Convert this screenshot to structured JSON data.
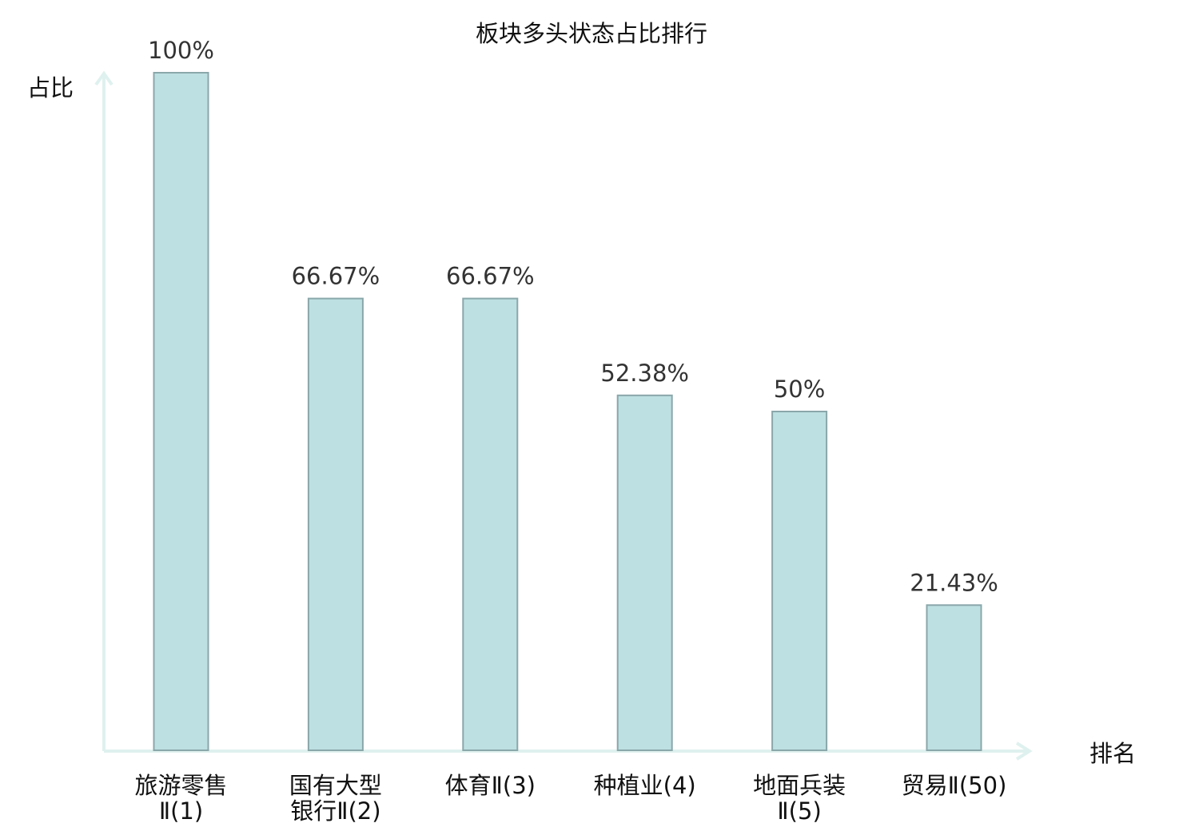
{
  "chart_data": {
    "type": "bar",
    "title": "板块多头状态占比排行",
    "ylabel": "占比",
    "xlabel": "排名",
    "ylim": [
      0,
      100
    ],
    "grid": false,
    "categories": [
      {
        "lines": [
          "旅游零售",
          "Ⅱ(1)"
        ]
      },
      {
        "lines": [
          "国有大型",
          "银行Ⅱ(2)"
        ]
      },
      {
        "lines": [
          "体育Ⅱ(3)"
        ]
      },
      {
        "lines": [
          "种植业(4)"
        ]
      },
      {
        "lines": [
          "地面兵装",
          "Ⅱ(5)"
        ]
      },
      {
        "lines": [
          "贸易Ⅱ(50)"
        ],
        "highlight": true
      }
    ],
    "values": [
      100,
      66.67,
      66.67,
      52.38,
      50,
      21.43
    ],
    "value_labels": [
      "100%",
      "66.67%",
      "66.67%",
      "52.38%",
      "50%",
      "21.43%"
    ]
  },
  "colors": {
    "bar_fill": "#bde0e3",
    "bar_stroke": "#8aa7aa",
    "axis": "#dff1ee",
    "highlight": "#d9232a",
    "text": "#111111",
    "value_text": "#333333"
  }
}
